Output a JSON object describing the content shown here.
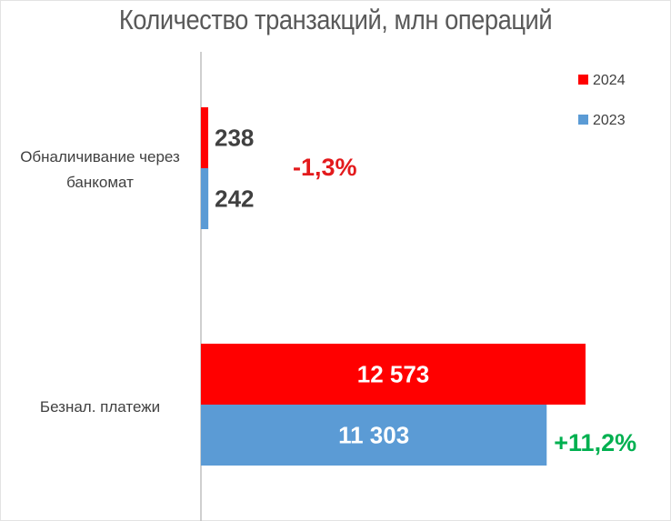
{
  "chart_data": {
    "type": "bar",
    "orientation": "horizontal",
    "title": "Количество транзакций, млн операций",
    "categories": [
      {
        "lines": [
          "Обналичивание через",
          "банкомат"
        ]
      },
      {
        "lines": [
          "Безнал. платежи"
        ]
      }
    ],
    "series": [
      {
        "name": "2024",
        "color": "#ff0000",
        "values": [
          238,
          12573
        ],
        "value_labels": [
          "238",
          "12 573"
        ]
      },
      {
        "name": "2023",
        "color": "#5b9bd5",
        "values": [
          242,
          11303
        ],
        "value_labels": [
          "242",
          "11 303"
        ]
      }
    ],
    "changes": [
      {
        "text": "-1,3%",
        "color": "#e31a1c"
      },
      {
        "text": "+11,2%",
        "color": "#00b050"
      }
    ],
    "xlim": [
      0,
      12573
    ],
    "legend": [
      "2024",
      "2023"
    ],
    "legend_position": "top-right",
    "grid": false
  }
}
